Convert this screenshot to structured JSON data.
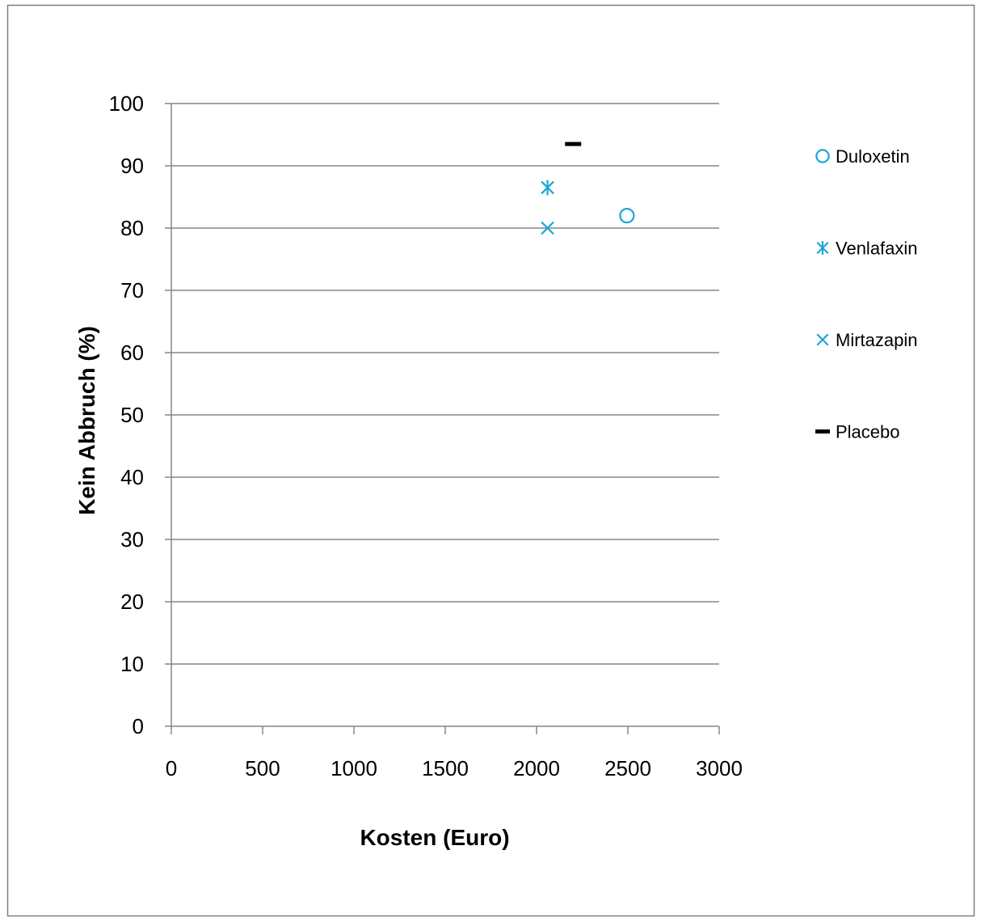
{
  "chart_data": {
    "type": "scatter",
    "xlabel": "Kosten (Euro)",
    "ylabel": "Kein Abbruch (%)",
    "xlim": [
      0,
      3000
    ],
    "ylim": [
      0,
      100
    ],
    "x_ticks": [
      0,
      500,
      1000,
      1500,
      2000,
      2500,
      3000
    ],
    "y_ticks": [
      0,
      10,
      20,
      30,
      40,
      50,
      60,
      70,
      80,
      90,
      100
    ],
    "grid": "horizontal",
    "legend_position": "right",
    "series": [
      {
        "name": "Duloxetin",
        "marker": "circle",
        "color": "#1AA7D6",
        "points": [
          {
            "x": 2495,
            "y": 82
          }
        ]
      },
      {
        "name": "Venlafaxin",
        "marker": "asterisk",
        "color": "#1AA7D6",
        "points": [
          {
            "x": 2060,
            "y": 86.5
          }
        ]
      },
      {
        "name": "Mirtazapin",
        "marker": "cross",
        "color": "#1AA7D6",
        "points": [
          {
            "x": 2060,
            "y": 80
          }
        ]
      },
      {
        "name": "Placebo",
        "marker": "dash",
        "color": "#000000",
        "points": [
          {
            "x": 2200,
            "y": 93.5
          }
        ]
      }
    ]
  }
}
